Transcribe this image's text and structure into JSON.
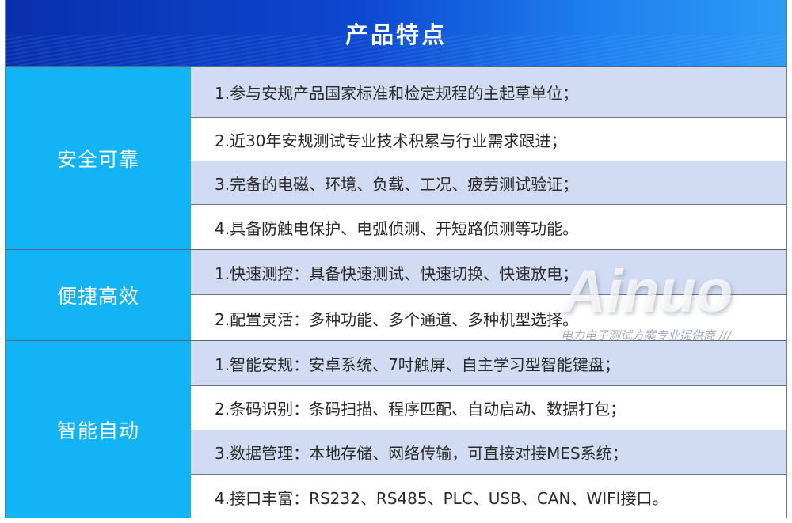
{
  "header": {
    "title": "产品特点"
  },
  "groups": [
    {
      "label": "安全可靠",
      "items": [
        "1.参与安规产品国家标准和检定规程的主起草单位；",
        "2.近30年安规测试专业技术积累与行业需求跟进；",
        "3.完备的电磁、环境、负载、工况、疲劳测试验证；",
        "4.具备防触电保护、电弧侦测、开短路侦测等功能。"
      ]
    },
    {
      "label": "便捷高效",
      "items": [
        "1.快速测控：具备快速测试、快速切换、快速放电；",
        "2.配置灵活：多种功能、多个通道、多种机型选择。"
      ]
    },
    {
      "label": "智能自动",
      "items": [
        "1.智能安规：安卓系统、7吋触屏、自主学习型智能键盘；",
        "2.条码识别：条码扫描、程序匹配、自动启动、数据打包；",
        "3.数据管理：本地存储、网络传输，可直接对接MES系统；",
        "4.接口丰富：RS232、RS485、PLC、USB、CAN、WIFI接口。"
      ]
    }
  ],
  "watermark": {
    "logo": "Ainuo",
    "slogan": "电力电子测试方案专业提供商"
  },
  "colors": {
    "header": "#0d47d0",
    "group_label_bg": "#12b4f6",
    "row_alt": "#d1dcf3"
  }
}
